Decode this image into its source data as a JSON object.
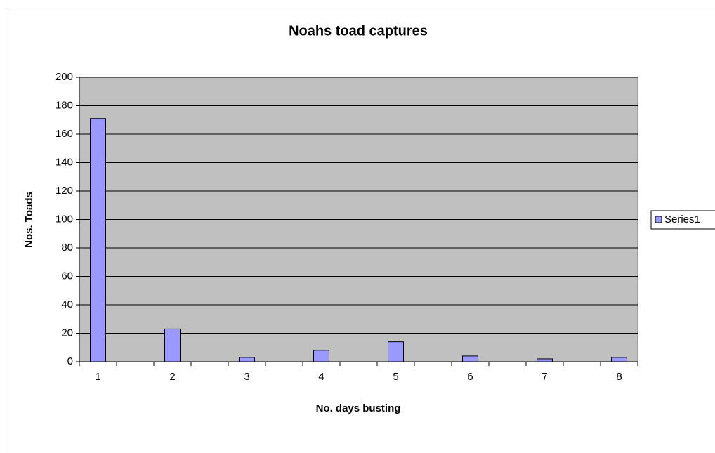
{
  "chart_data": {
    "type": "bar",
    "title": "Noahs toad captures",
    "x_label": "No. days busting",
    "y_label": "Nos. Toads",
    "categories": [
      "1",
      null,
      "2",
      null,
      "3",
      null,
      "4",
      null,
      "5",
      null,
      "6",
      null,
      "7",
      null,
      "8"
    ],
    "series": [
      {
        "name": "Series1",
        "color": "#9999ff",
        "values": [
          171,
          0,
          23,
          0,
          3,
          0,
          8,
          0,
          14,
          0,
          4,
          0,
          2,
          0,
          3
        ]
      }
    ],
    "ylim": [
      0,
      200
    ],
    "yticks": [
      0,
      20,
      40,
      60,
      80,
      100,
      120,
      140,
      160,
      180,
      200
    ],
    "grid": true,
    "plot_background": "#c0c0c0",
    "legend": "right"
  }
}
